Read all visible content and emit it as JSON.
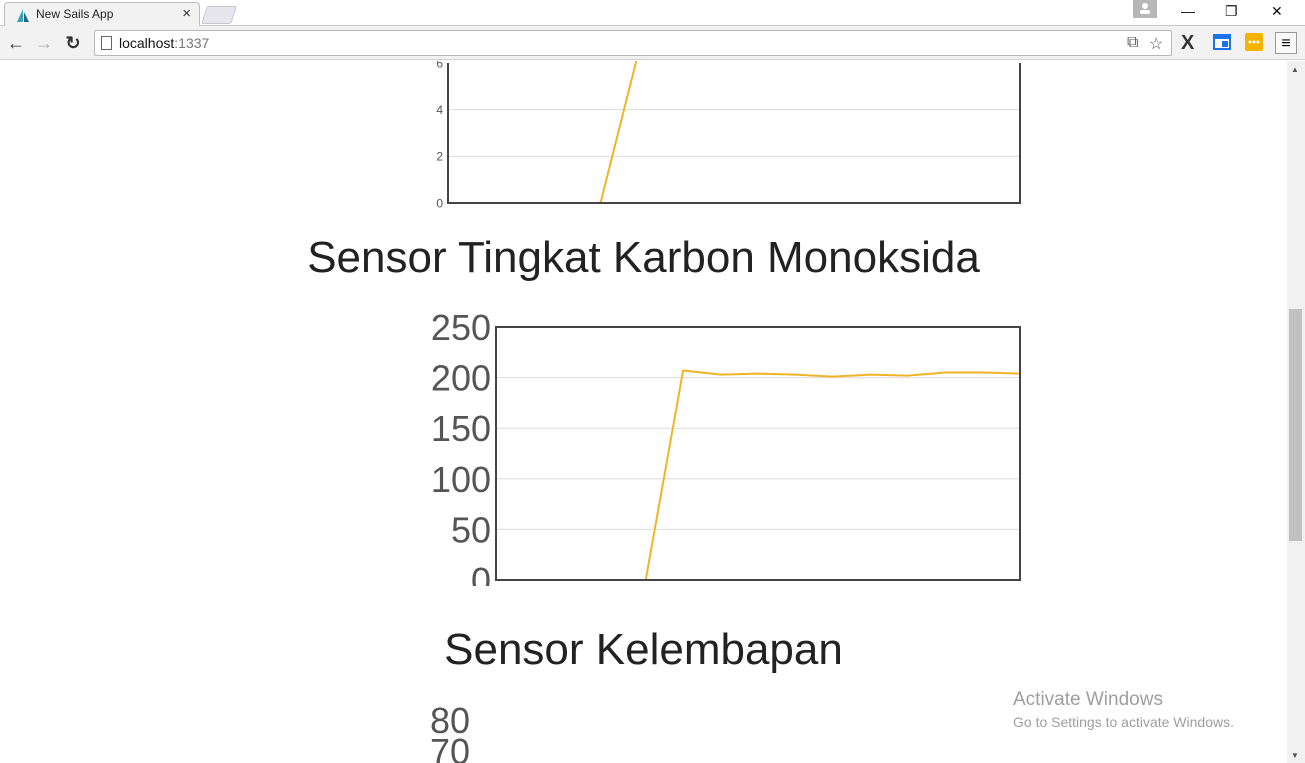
{
  "browser": {
    "tab_title": "New Sails App",
    "tab_close": "×",
    "url_host": "localhost",
    "url_port": ":1337",
    "window_minimize": "—",
    "window_restore": "❐",
    "window_close": "✕",
    "back": "←",
    "forward": "→",
    "reload": "↻",
    "translate": "⧉",
    "bookmark_star": "☆",
    "menu": "≡",
    "ext_x": "X"
  },
  "sections": {
    "co_title": "Sensor Tingkat Karbon Monoksida",
    "humidity_title": "Sensor Kelembapan"
  },
  "chart_data": [
    {
      "type": "line",
      "title": "",
      "yticks": [
        "0",
        "2",
        "4",
        "6"
      ],
      "values": [
        0,
        0,
        0,
        0,
        0,
        6.5,
        6.5,
        6.5,
        6.5,
        6.5,
        6.5,
        6.5,
        6.5,
        6.5,
        6.5,
        6.5
      ],
      "ylim": [
        0,
        6
      ],
      "color": "#f0b429",
      "grid": true
    },
    {
      "type": "line",
      "title": "Sensor Tingkat Karbon Monoksida",
      "yticks": [
        "0",
        "50",
        "100",
        "150",
        "200",
        "250"
      ],
      "values": [
        0,
        0,
        0,
        0,
        0,
        207,
        203,
        204,
        203,
        201,
        203,
        202,
        205,
        205,
        204
      ],
      "ylim": [
        0,
        250
      ],
      "color": "#f0b429",
      "grid": true
    },
    {
      "type": "line",
      "title": "Sensor Kelembapan",
      "yticks": [
        "80",
        "70"
      ]
    }
  ],
  "watermark": {
    "line1": "Activate Windows",
    "line2": "Go to Settings to activate Windows."
  }
}
